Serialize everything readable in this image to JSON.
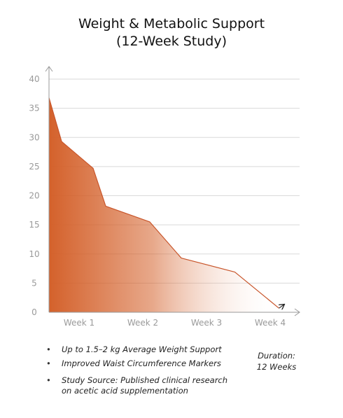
{
  "title": {
    "line1": "Weight & Metabolic Support",
    "line2": "(12-Week Study)"
  },
  "chart_data": {
    "type": "area",
    "title": "Weight & Metabolic Support (12-Week Study)",
    "xlabel": "",
    "ylabel": "",
    "ylim": [
      0,
      40
    ],
    "yticks": [
      "0",
      "5",
      "10",
      "15",
      "20",
      "25",
      "30",
      "35",
      "40"
    ],
    "categories": [
      "Week 1",
      "Week 2",
      "Week 3",
      "Week 4"
    ],
    "grid": true,
    "fill_gradient": [
      "#d4612b",
      "#ffffff"
    ],
    "line_color": "#c8552a",
    "series": [
      {
        "x": [
          0,
          0.2,
          0.7,
          0.9,
          1.6,
          2.1,
          2.95,
          3.65
        ],
        "y": [
          36.8,
          29.3,
          24.7,
          18.2,
          15.5,
          9.3,
          6.9,
          0.7
        ]
      }
    ]
  },
  "notes": {
    "bullets": [
      "Up to 1.5–2 kg Average Weight Support",
      "Improved Waist Circumference Markers",
      "Study Source: Published clinical research",
      "on acetic acid supplementation"
    ],
    "duration_line1": "Duration:",
    "duration_line2": "12 Weeks"
  }
}
